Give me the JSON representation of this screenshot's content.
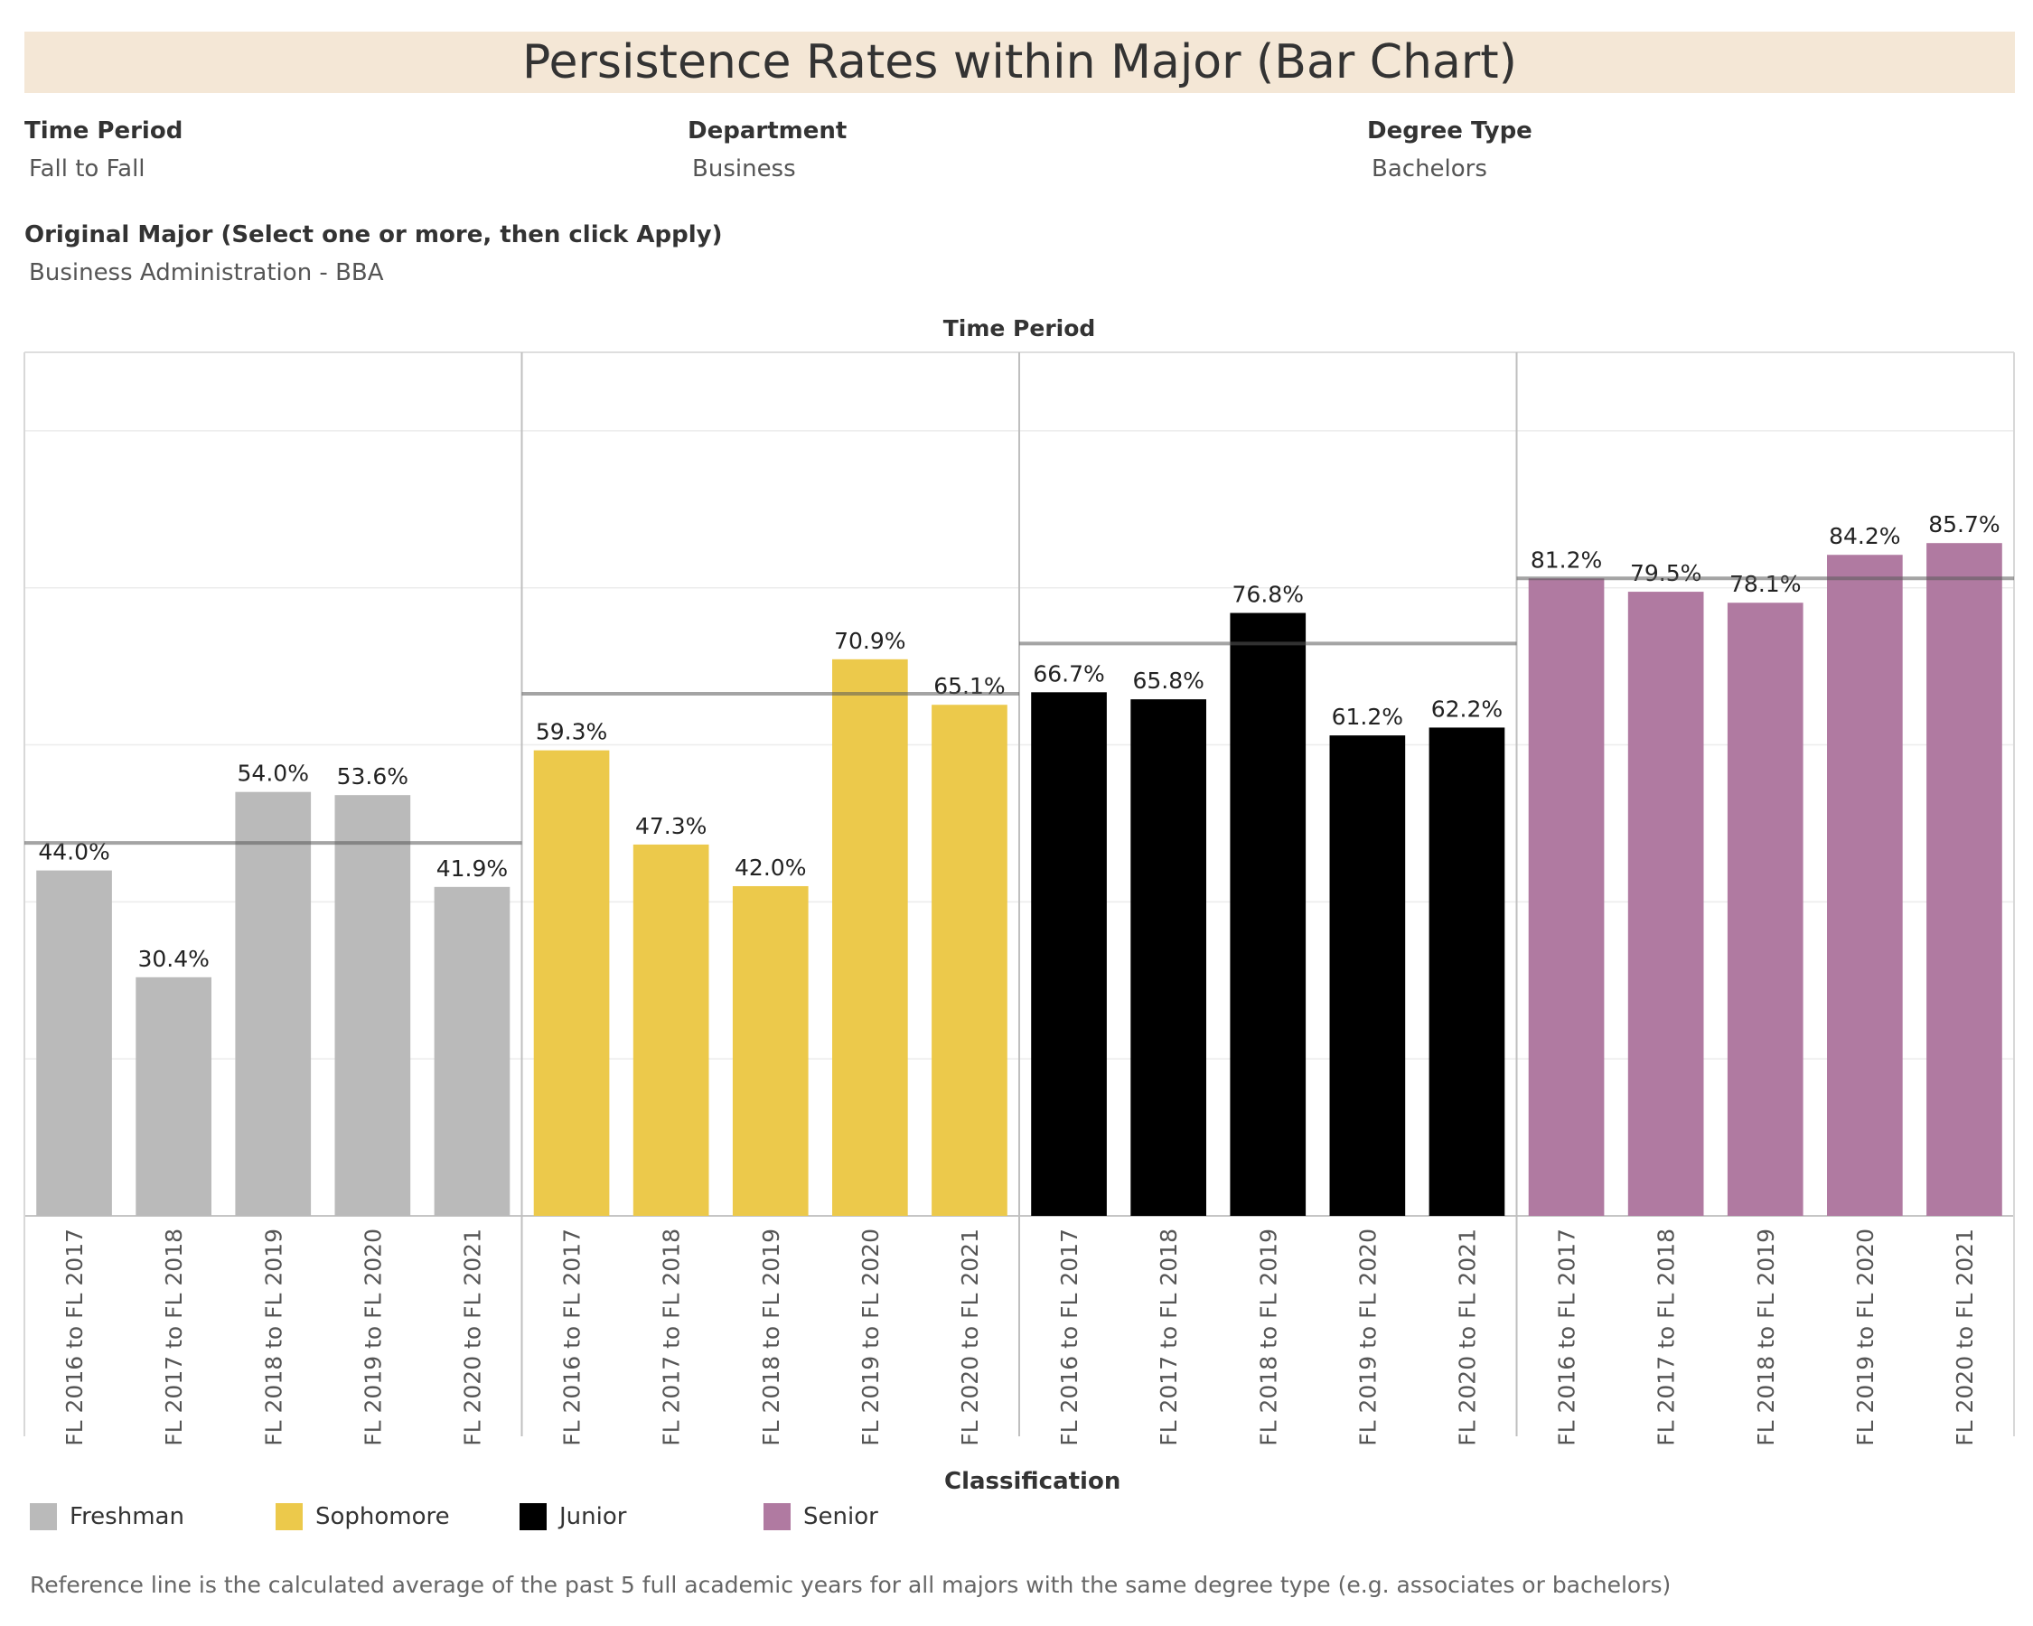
{
  "title": "Persistence Rates within Major (Bar Chart)",
  "filters": [
    {
      "label": "Time Period",
      "value": "Fall to Fall"
    },
    {
      "label": "Department",
      "value": "Business"
    },
    {
      "label": "Degree Type",
      "value": "Bachelors"
    },
    {
      "label": "Original Major (Select one or more, then click Apply)",
      "value": "Business Administration - BBA"
    }
  ],
  "legend": {
    "title": "Classification",
    "items": [
      {
        "label": "Freshman",
        "color": "#bababa"
      },
      {
        "label": "Sophomore",
        "color": "#ecc94b"
      },
      {
        "label": "Junior",
        "color": "#000000"
      },
      {
        "label": "Senior",
        "color": "#b07aa1"
      }
    ]
  },
  "footnote": "Reference line is the calculated average of the past 5 full academic years for all majors with the same degree type (e.g. associates or bachelors)",
  "chart_data": {
    "type": "bar",
    "title": "Time Period",
    "ylim": [
      0,
      110
    ],
    "grid": true,
    "legend_position": "bottom",
    "categories": [
      "FL 2016 to FL 2017",
      "FL 2017 to FL 2018",
      "FL 2018 to FL 2019",
      "FL 2019 to FL 2020",
      "FL 2020 to FL 2021"
    ],
    "series": [
      {
        "name": "Freshman",
        "color": "#bababa",
        "values": [
          44.0,
          30.4,
          54.0,
          53.6,
          41.9
        ],
        "labels": [
          "44.0%",
          "30.4%",
          "54.0%",
          "53.6%",
          "41.9%"
        ],
        "reference": 47.5
      },
      {
        "name": "Sophomore",
        "color": "#ecc94b",
        "values": [
          59.3,
          47.3,
          42.0,
          70.9,
          65.1
        ],
        "labels": [
          "59.3%",
          "47.3%",
          "42.0%",
          "70.9%",
          "65.1%"
        ],
        "reference": 66.5
      },
      {
        "name": "Junior",
        "color": "#000000",
        "values": [
          66.7,
          65.8,
          76.8,
          61.2,
          62.2
        ],
        "labels": [
          "66.7%",
          "65.8%",
          "76.8%",
          "61.2%",
          "62.2%"
        ],
        "reference": 72.9
      },
      {
        "name": "Senior",
        "color": "#b07aa1",
        "values": [
          81.2,
          79.5,
          78.1,
          84.2,
          85.7
        ],
        "labels": [
          "81.2%",
          "79.5%",
          "78.1%",
          "84.2%",
          "85.7%"
        ],
        "reference": 81.2
      }
    ]
  }
}
